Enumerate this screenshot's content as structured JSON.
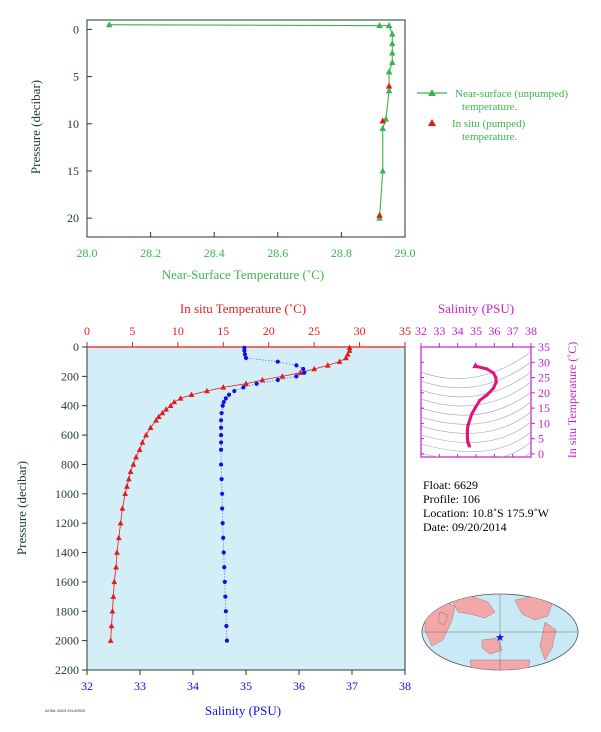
{
  "chart_data": [
    {
      "type": "line",
      "xlabel": "Near-Surface Temperature (˚C)",
      "ylabel": "Pressure (decibar)",
      "xlim": [
        28.0,
        29.0
      ],
      "ylim": [
        22,
        -1
      ],
      "x_ticks": [
        "28.0",
        "28.2",
        "28.4",
        "28.6",
        "28.8",
        "29.0"
      ],
      "y_ticks": [
        "0",
        "5",
        "10",
        "15",
        "20"
      ],
      "legend_position": "right",
      "series": [
        {
          "name": "Near-surface (unpumped) temperature.",
          "color": "#3cb44b",
          "marker": "triangle",
          "line": true,
          "x": [
            28.07,
            28.92,
            28.95,
            28.96,
            28.96,
            28.96,
            28.96,
            28.95,
            28.95,
            28.94,
            28.93,
            28.93,
            28.92
          ],
          "y": [
            -0.5,
            -0.4,
            -0.4,
            0.5,
            1.5,
            2.5,
            3.5,
            4.5,
            6.5,
            9.5,
            10.5,
            15.0,
            20.0
          ]
        },
        {
          "name": "In situ (pumped) temperature.",
          "color": "#e41a1c",
          "marker": "triangle",
          "line": false,
          "x": [
            28.95,
            28.93,
            28.92
          ],
          "y": [
            6.0,
            9.7,
            19.7
          ]
        }
      ]
    },
    {
      "type": "line",
      "top_label": "In situ Temperature (˚C)",
      "bottom_label": "Salinity (PSU)",
      "ylabel": "Pressure (decibar)",
      "ylim": [
        2200,
        0
      ],
      "temp_lim": [
        0,
        35
      ],
      "sal_lim": [
        32,
        38
      ],
      "temp_ticks": [
        "0",
        "5",
        "10",
        "15",
        "20",
        "25",
        "30",
        "35"
      ],
      "sal_ticks": [
        "32",
        "33",
        "34",
        "35",
        "36",
        "37",
        "38"
      ],
      "p_ticks": [
        "0",
        "200",
        "400",
        "600",
        "800",
        "1000",
        "1200",
        "1400",
        "1600",
        "1800",
        "2000",
        "2200"
      ],
      "temperature_series": {
        "name": "Temperature",
        "color": "#e41a1c",
        "p": [
          5,
          25,
          50,
          75,
          100,
          125,
          150,
          175,
          200,
          225,
          250,
          275,
          300,
          325,
          350,
          375,
          400,
          425,
          450,
          475,
          500,
          550,
          600,
          650,
          700,
          750,
          800,
          850,
          900,
          950,
          1000,
          1100,
          1200,
          1300,
          1400,
          1500,
          1600,
          1700,
          1800,
          1900,
          2000
        ],
        "t": [
          28.9,
          28.9,
          28.7,
          28.5,
          27.8,
          26.5,
          25.0,
          23.5,
          21.5,
          19.3,
          17.5,
          15.0,
          13.2,
          11.5,
          10.3,
          9.6,
          9.2,
          8.7,
          8.3,
          7.9,
          7.6,
          7.0,
          6.5,
          6.1,
          5.8,
          5.4,
          5.1,
          4.8,
          4.6,
          4.4,
          4.2,
          3.9,
          3.7,
          3.5,
          3.3,
          3.2,
          3.0,
          2.9,
          2.8,
          2.7,
          2.6
        ]
      },
      "salinity_series": {
        "name": "Salinity",
        "color": "#1010e6",
        "p": [
          5,
          25,
          50,
          75,
          100,
          125,
          150,
          175,
          200,
          225,
          250,
          275,
          300,
          325,
          350,
          375,
          400,
          450,
          500,
          550,
          600,
          650,
          700,
          800,
          900,
          1000,
          1100,
          1200,
          1300,
          1400,
          1500,
          1600,
          1700,
          1800,
          1900,
          2000
        ],
        "s": [
          34.97,
          34.97,
          34.98,
          35.0,
          35.6,
          35.95,
          36.08,
          36.1,
          35.95,
          35.6,
          35.2,
          34.95,
          34.78,
          34.68,
          34.62,
          34.58,
          34.56,
          34.54,
          34.53,
          34.53,
          34.53,
          34.53,
          34.53,
          34.53,
          34.54,
          34.55,
          34.55,
          34.56,
          34.57,
          34.58,
          34.59,
          34.6,
          34.61,
          34.62,
          34.63,
          34.64
        ]
      }
    },
    {
      "type": "scatter",
      "top_label": "Salinity (PSU)",
      "right_label": "In situ Temperature (˚C)",
      "xlim": [
        32,
        38
      ],
      "ylim": [
        -1,
        35
      ],
      "x_ticks": [
        "32",
        "33",
        "34",
        "35",
        "36",
        "37",
        "38"
      ],
      "y_ticks": [
        "0",
        "5",
        "10",
        "15",
        "20",
        "25",
        "30",
        "35"
      ],
      "color": "#e0157a",
      "salinity": [
        34.97,
        34.97,
        35.0,
        35.6,
        35.95,
        36.08,
        36.1,
        35.95,
        35.6,
        35.2,
        34.95,
        34.78,
        34.68,
        34.62,
        34.58,
        34.56,
        34.54,
        34.53,
        34.53,
        34.53,
        34.53,
        34.54,
        34.55,
        34.56,
        34.58,
        34.6,
        34.62,
        34.64
      ],
      "temperature": [
        28.9,
        28.9,
        28.7,
        27.8,
        26.5,
        25.0,
        23.5,
        21.5,
        19.3,
        17.5,
        15.0,
        13.2,
        11.5,
        10.3,
        9.6,
        9.2,
        8.3,
        7.6,
        7.0,
        6.1,
        5.4,
        4.8,
        4.4,
        3.9,
        3.5,
        3.2,
        2.9,
        2.6
      ]
    }
  ],
  "float_info": {
    "float": "Float:  6629",
    "profile": "Profile:  106",
    "location": "Location:  10.8˚S  175.9˚W",
    "date": "Date:  09/20/2014"
  },
  "footer_text": "AOML 6629 20140920",
  "colors": {
    "green": "#3cb44b",
    "red": "#e41a1c",
    "blue": "#1010e6",
    "magenta": "#c71fc7",
    "pink": "#e0157a",
    "plot_bg": "#d4eef7",
    "axis_dark": "#1f3d2b",
    "land": "#f2a8a8",
    "ocean": "#c9e9f6"
  }
}
